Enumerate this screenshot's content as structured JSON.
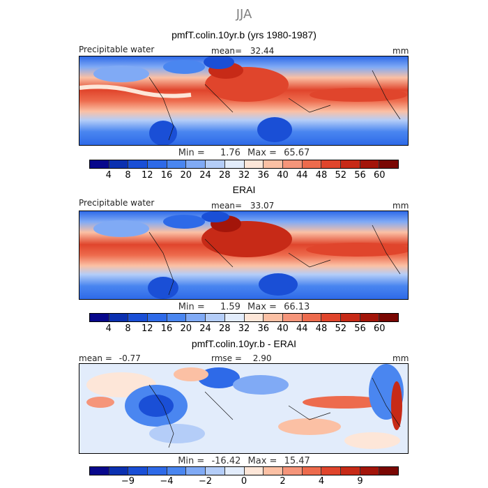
{
  "season": "JJA",
  "chart_data": [
    {
      "type": "heatmap",
      "title": "pmfT.colin.10yr.b (yrs 1980-1987)",
      "variable": "Precipitable water",
      "mean_label": "mean=",
      "mean": "32.44",
      "units": "mm",
      "min_label": "Min =",
      "min": "1.76",
      "max_label": "Max =",
      "max": "65.67",
      "colorbar_ticks": [
        "4",
        "8",
        "12",
        "16",
        "20",
        "24",
        "28",
        "32",
        "36",
        "40",
        "44",
        "48",
        "52",
        "56",
        "60"
      ]
    },
    {
      "type": "heatmap",
      "title": "ERAI",
      "variable": "Precipitable water",
      "mean_label": "mean=",
      "mean": "33.07",
      "units": "mm",
      "min_label": "Min =",
      "min": "1.59",
      "max_label": "Max =",
      "max": "66.13",
      "colorbar_ticks": [
        "4",
        "8",
        "12",
        "16",
        "20",
        "24",
        "28",
        "32",
        "36",
        "40",
        "44",
        "48",
        "52",
        "56",
        "60"
      ]
    },
    {
      "type": "heatmap",
      "title": "pmfT.colin.10yr.b - ERAI",
      "mean_label": "mean =",
      "mean": "-0.77",
      "rmse_label": "rmse =",
      "rmse": "2.90",
      "units": "mm",
      "min_label": "Min =",
      "min": "-16.42",
      "max_label": "Max =",
      "max": "15.47",
      "colorbar_ticks": [
        "−9",
        "−4",
        "−2",
        "0",
        "2",
        "4",
        "9"
      ]
    }
  ],
  "colors": {
    "abs_scale": [
      "#08088c",
      "#0b30b0",
      "#1a4fd6",
      "#2e6ae8",
      "#4a86f0",
      "#80aaf5",
      "#b4cdf8",
      "#e2ecfb",
      "#fde6d8",
      "#fbc0a4",
      "#f5957a",
      "#ed6b4d",
      "#e0452c",
      "#c72a17",
      "#a3150a",
      "#7a0703"
    ],
    "diff_scale": [
      "#08088c",
      "#0b30b0",
      "#1a4fd6",
      "#2e6ae8",
      "#4a86f0",
      "#80aaf5",
      "#b4cdf8",
      "#e2ecfb",
      "#fde6d8",
      "#fbc0a4",
      "#f5957a",
      "#ed6b4d",
      "#e0452c",
      "#c72a17",
      "#a3150a",
      "#7a0703"
    ]
  }
}
